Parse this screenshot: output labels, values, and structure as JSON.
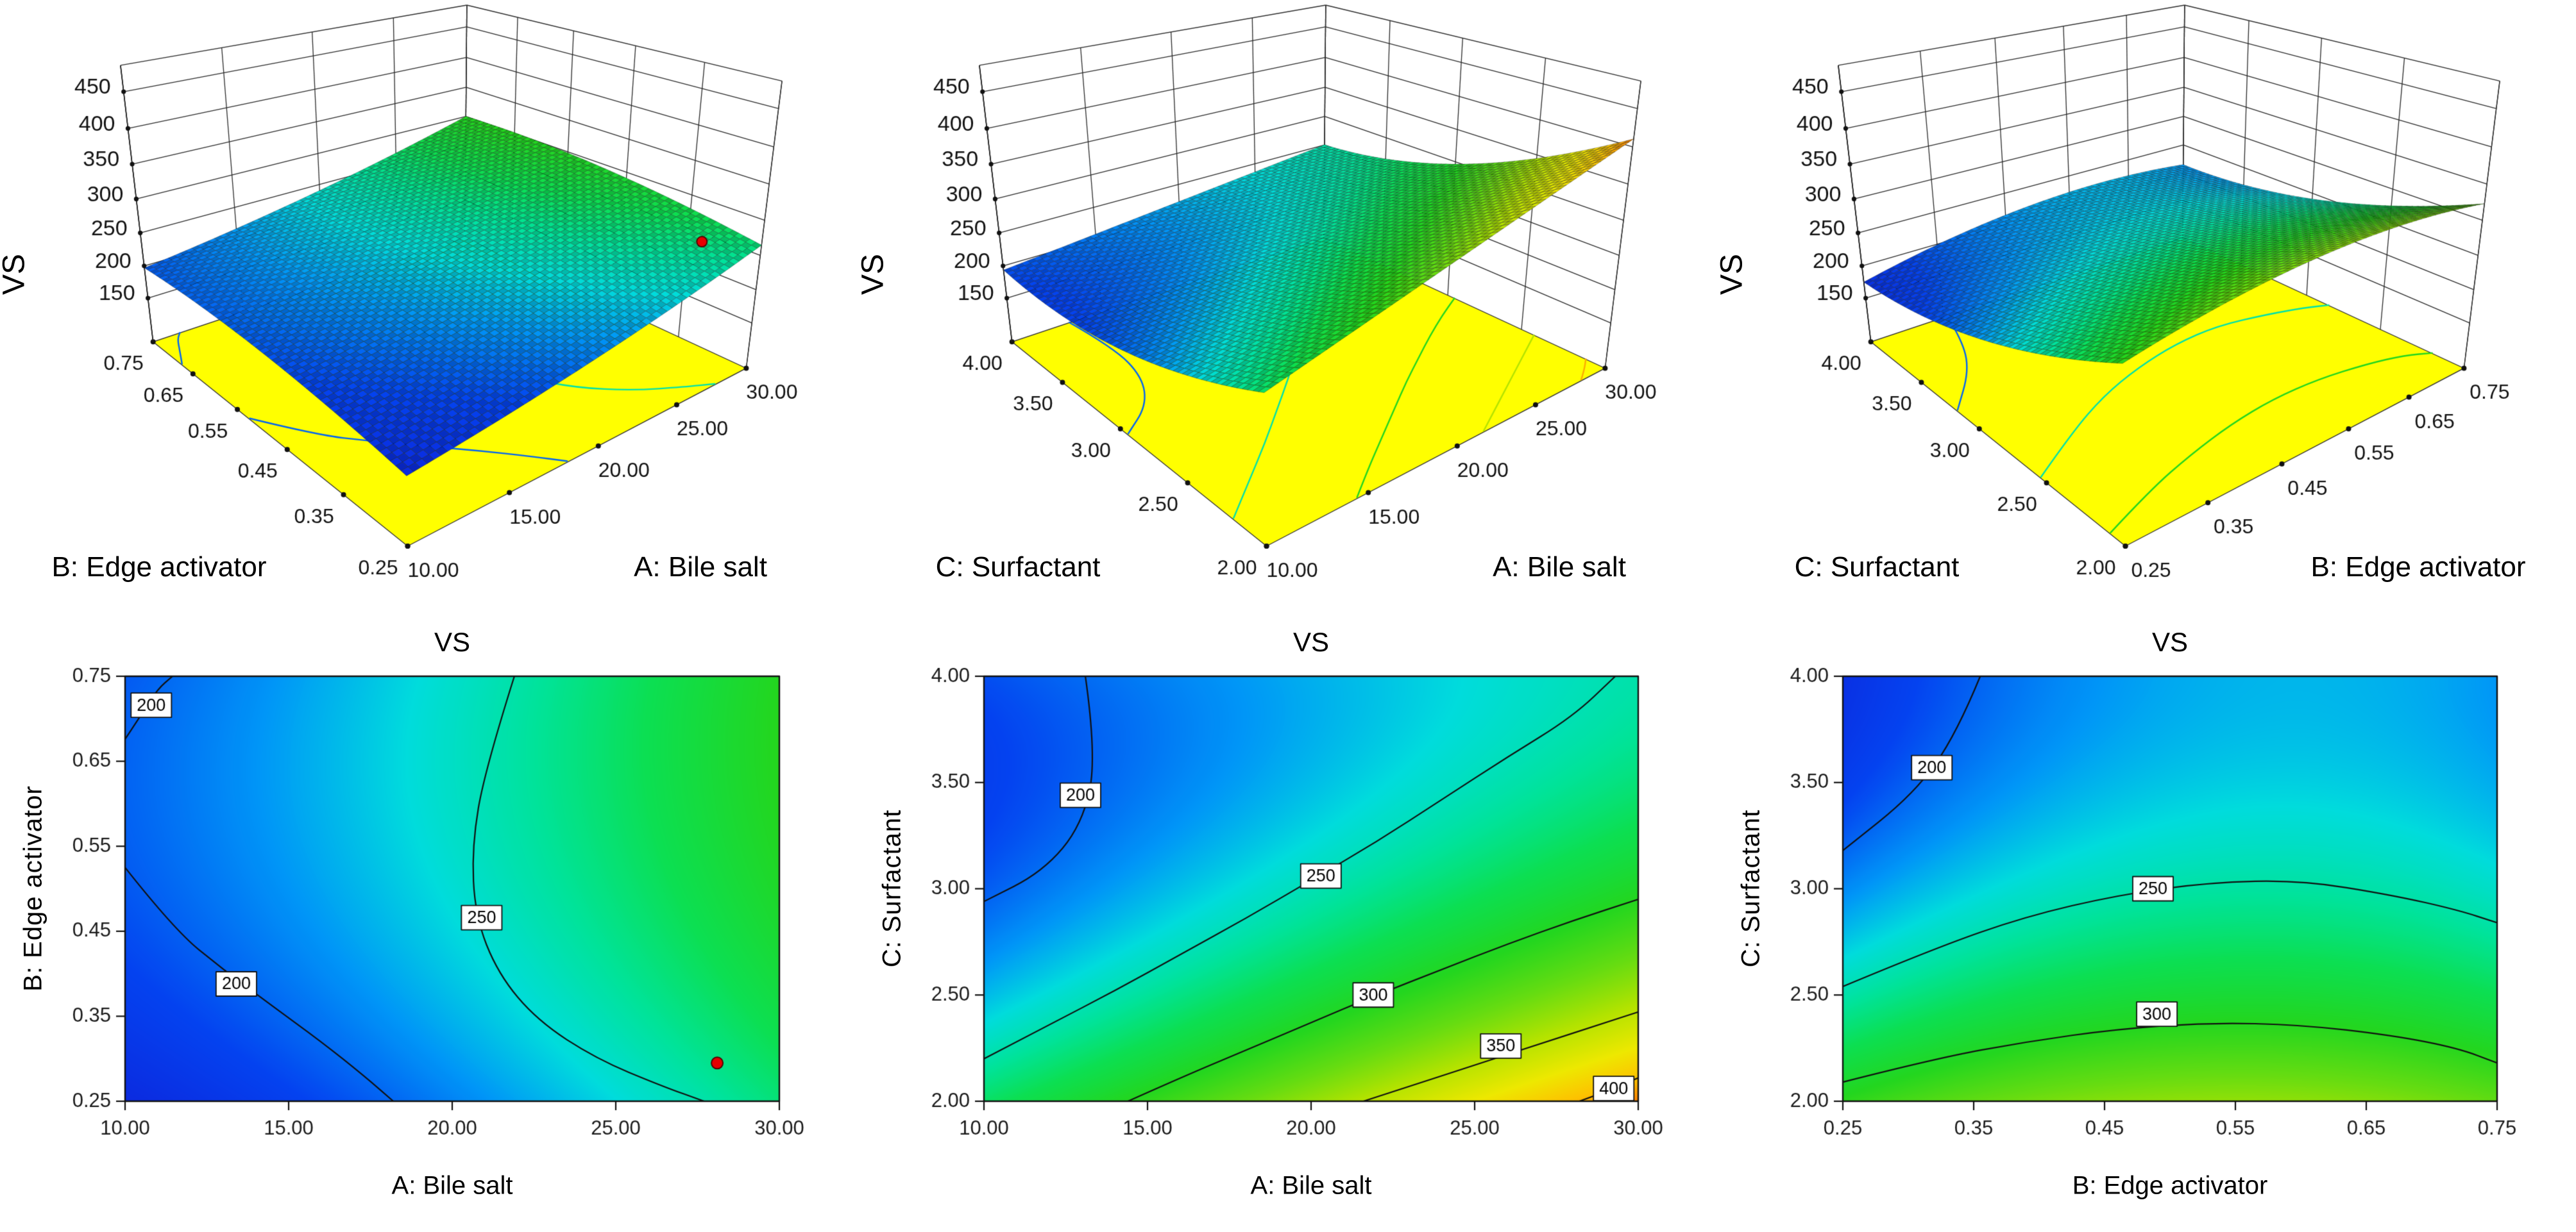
{
  "page": {
    "background": "#ffffff",
    "description": "Response surface methodology figure for response VS: three 3D surface plots over yellow floor planes (top row) and three filled 2D contour plots (bottom row)."
  },
  "style": {
    "floor_color": "#ffff00",
    "contour_line_color": "#101010",
    "design_point_color": "#e60000",
    "design_point_edge": "#550000",
    "grid_line_color": "#2a2a2a",
    "tick_text_color": "#1a1a1a"
  },
  "colormap": {
    "domain": [
      150,
      450
    ],
    "stops": [
      [
        150,
        "#1212cf"
      ],
      [
        190,
        "#0443f0"
      ],
      [
        215,
        "#0097f7"
      ],
      [
        235,
        "#00dcdc"
      ],
      [
        255,
        "#00e39a"
      ],
      [
        275,
        "#0cdf52"
      ],
      [
        300,
        "#23d61f"
      ],
      [
        325,
        "#66dc11"
      ],
      [
        350,
        "#b4e300"
      ],
      [
        375,
        "#eee800"
      ],
      [
        395,
        "#fdc200"
      ],
      [
        415,
        "#fb6a00"
      ],
      [
        435,
        "#f12e00"
      ],
      [
        450,
        "#e81600"
      ]
    ]
  },
  "chart_data": [
    {
      "id": "A-B",
      "type": "3d-surface + filled-contour",
      "title": "VS",
      "x": {
        "label": "A: Bile salt",
        "min": 10,
        "max": 30,
        "ticks": [
          "10.00",
          "15.00",
          "20.00",
          "25.00",
          "30.00"
        ]
      },
      "y": {
        "label": "B: Edge activator",
        "min": 0.25,
        "max": 0.75,
        "ticks": [
          "0.25",
          "0.35",
          "0.45",
          "0.55",
          "0.65",
          "0.75"
        ]
      },
      "z": {
        "label": "VS",
        "min": 150,
        "max": 450,
        "ticks": [
          "150",
          "200",
          "250",
          "300",
          "350",
          "400",
          "450"
        ]
      },
      "model_coded": {
        "c0": 237.3,
        "ca": 49.5,
        "cb": 15.6,
        "cab": 2.1,
        "caa": 8.3,
        "cbb": -12.7
      },
      "contours": [
        {
          "level": 200,
          "label": "200",
          "label_at": [
            10.8,
            0.716
          ],
          "points": [
            [
              10,
              0.676
            ],
            [
              10.55,
              0.708
            ],
            [
              11.0,
              0.735
            ],
            [
              11.45,
              0.75
            ]
          ]
        },
        {
          "level": 200,
          "label": "200",
          "label_at": [
            13.4,
            0.388
          ],
          "points": [
            [
              10,
              0.525
            ],
            [
              11.5,
              0.452
            ],
            [
              13,
              0.405
            ],
            [
              14.5,
              0.362
            ],
            [
              16,
              0.32
            ],
            [
              17.3,
              0.28
            ],
            [
              18.2,
              0.25
            ]
          ]
        },
        {
          "level": 250,
          "label": "250",
          "label_at": [
            20.9,
            0.466
          ],
          "points": [
            [
              21.9,
              0.75
            ],
            [
              21.0,
              0.64
            ],
            [
              20.6,
              0.55
            ],
            [
              20.7,
              0.468
            ],
            [
              21.4,
              0.4
            ],
            [
              22.6,
              0.345
            ],
            [
              24.4,
              0.3
            ],
            [
              26.4,
              0.268
            ],
            [
              27.7,
              0.25
            ]
          ]
        }
      ],
      "design_points": [
        {
          "x": 28.1,
          "y": 0.295
        }
      ]
    },
    {
      "id": "A-C",
      "type": "3d-surface + filled-contour",
      "title": "VS",
      "x": {
        "label": "A: Bile salt",
        "min": 10,
        "max": 30,
        "ticks": [
          "10.00",
          "15.00",
          "20.00",
          "25.00",
          "30.00"
        ]
      },
      "y": {
        "label": "C: Surfactant",
        "min": 2,
        "max": 4,
        "ticks": [
          "2.00",
          "2.50",
          "3.00",
          "3.50",
          "4.00"
        ]
      },
      "z": {
        "label": "VS",
        "min": 150,
        "max": 450,
        "ticks": [
          "150",
          "200",
          "250",
          "300",
          "350",
          "400",
          "450"
        ]
      },
      "model_coded": {
        "c0": 247,
        "ca": 49.4,
        "cb": -59,
        "cab": -21,
        "caa": 0,
        "cbb": 34
      },
      "contours": [
        {
          "level": 200,
          "label": "200",
          "label_at": [
            12.95,
            3.44
          ],
          "points": [
            [
              13.1,
              4.0
            ],
            [
              13.45,
              3.62
            ],
            [
              13.0,
              3.3
            ],
            [
              11.8,
              3.08
            ],
            [
              10,
              2.94
            ]
          ]
        },
        {
          "level": 250,
          "label": "250",
          "label_at": [
            20.3,
            3.06
          ],
          "points": [
            [
              10,
              2.2
            ],
            [
              12,
              2.36
            ],
            [
              14,
              2.52
            ],
            [
              16,
              2.69
            ],
            [
              18,
              2.86
            ],
            [
              20,
              3.04
            ],
            [
              22,
              3.22
            ],
            [
              24,
              3.42
            ],
            [
              26,
              3.62
            ],
            [
              28,
              3.81
            ],
            [
              29.3,
              4.0
            ]
          ]
        },
        {
          "level": 300,
          "label": "300",
          "label_at": [
            21.9,
            2.5
          ],
          "points": [
            [
              14.4,
              2.0
            ],
            [
              16,
              2.11
            ],
            [
              18,
              2.24
            ],
            [
              20,
              2.37
            ],
            [
              22,
              2.5
            ],
            [
              24,
              2.62
            ],
            [
              26,
              2.74
            ],
            [
              28,
              2.85
            ],
            [
              30,
              2.95
            ]
          ]
        },
        {
          "level": 350,
          "label": "350",
          "label_at": [
            25.8,
            2.26
          ],
          "points": [
            [
              21.6,
              2.0
            ],
            [
              23,
              2.07
            ],
            [
              25,
              2.17
            ],
            [
              27,
              2.27
            ],
            [
              29,
              2.37
            ],
            [
              30,
              2.42
            ]
          ]
        },
        {
          "level": 400,
          "label": "400",
          "label_at": [
            29.25,
            2.06
          ],
          "points": [
            [
              28.2,
              2.0
            ],
            [
              29.1,
              2.05
            ],
            [
              30,
              2.11
            ]
          ]
        }
      ],
      "design_points": []
    },
    {
      "id": "B-C",
      "type": "3d-surface + filled-contour",
      "title": "VS",
      "x": {
        "label": "B: Edge activator",
        "min": 0.25,
        "max": 0.75,
        "ticks": [
          "0.25",
          "0.35",
          "0.45",
          "0.55",
          "0.65",
          "0.75"
        ]
      },
      "y": {
        "label": "C: Surfactant",
        "min": 2,
        "max": 4,
        "ticks": [
          "2.00",
          "2.50",
          "3.00",
          "3.50",
          "4.00"
        ]
      },
      "z": {
        "label": "VS",
        "min": 150,
        "max": 450,
        "ticks": [
          "150",
          "200",
          "250",
          "300",
          "350",
          "400",
          "450"
        ]
      },
      "model_coded": {
        "c0": 251,
        "ca": 15,
        "cb": -59,
        "cab": 5,
        "caa": -25,
        "cbb": 28
      },
      "contours": [
        {
          "level": 200,
          "label": "200",
          "label_at": [
            0.318,
            3.57
          ],
          "points": [
            [
              0.355,
              4.0
            ],
            [
              0.337,
              3.73
            ],
            [
              0.305,
              3.45
            ],
            [
              0.25,
              3.18
            ]
          ]
        },
        {
          "level": 250,
          "label": "250",
          "label_at": [
            0.487,
            3.0
          ],
          "points": [
            [
              0.25,
              2.54
            ],
            [
              0.32,
              2.72
            ],
            [
              0.39,
              2.87
            ],
            [
              0.46,
              2.97
            ],
            [
              0.53,
              3.03
            ],
            [
              0.6,
              3.04
            ],
            [
              0.67,
              2.97
            ],
            [
              0.72,
              2.9
            ],
            [
              0.75,
              2.84
            ]
          ]
        },
        {
          "level": 300,
          "label": "300",
          "label_at": [
            0.49,
            2.41
          ],
          "points": [
            [
              0.25,
              2.09
            ],
            [
              0.32,
              2.2
            ],
            [
              0.39,
              2.28
            ],
            [
              0.46,
              2.34
            ],
            [
              0.53,
              2.37
            ],
            [
              0.6,
              2.36
            ],
            [
              0.67,
              2.31
            ],
            [
              0.72,
              2.25
            ],
            [
              0.75,
              2.18
            ]
          ]
        }
      ],
      "design_points": []
    }
  ]
}
